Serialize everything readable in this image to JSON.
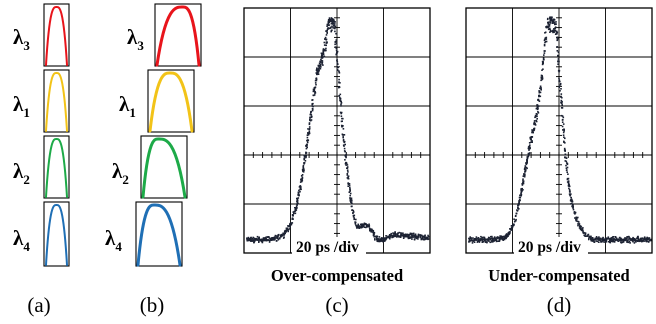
{
  "panel_a": {
    "letter": "(a)",
    "channels": [
      {
        "label": "λ",
        "index": "3",
        "color": "#e8141b"
      },
      {
        "label": "λ",
        "index": "1",
        "color": "#f2c318"
      },
      {
        "label": "λ",
        "index": "2",
        "color": "#1daa48"
      },
      {
        "label": "λ",
        "index": "4",
        "color": "#1f6fb5"
      }
    ]
  },
  "panel_b": {
    "letter": "(b)",
    "channels": [
      {
        "label": "λ",
        "index": "3",
        "color": "#e8141b"
      },
      {
        "label": "λ",
        "index": "1",
        "color": "#f2c318"
      },
      {
        "label": "λ",
        "index": "2",
        "color": "#1daa48"
      },
      {
        "label": "λ",
        "index": "4",
        "color": "#1f6fb5"
      }
    ]
  },
  "panel_c": {
    "letter": "(c)",
    "caption": "Over-compensated",
    "scale": "20 ps /div",
    "trace_color": "#1c2232"
  },
  "panel_d": {
    "letter": "(d)",
    "caption": "Under-compensated",
    "scale": "20 ps /div",
    "trace_color": "#1c2232"
  }
}
